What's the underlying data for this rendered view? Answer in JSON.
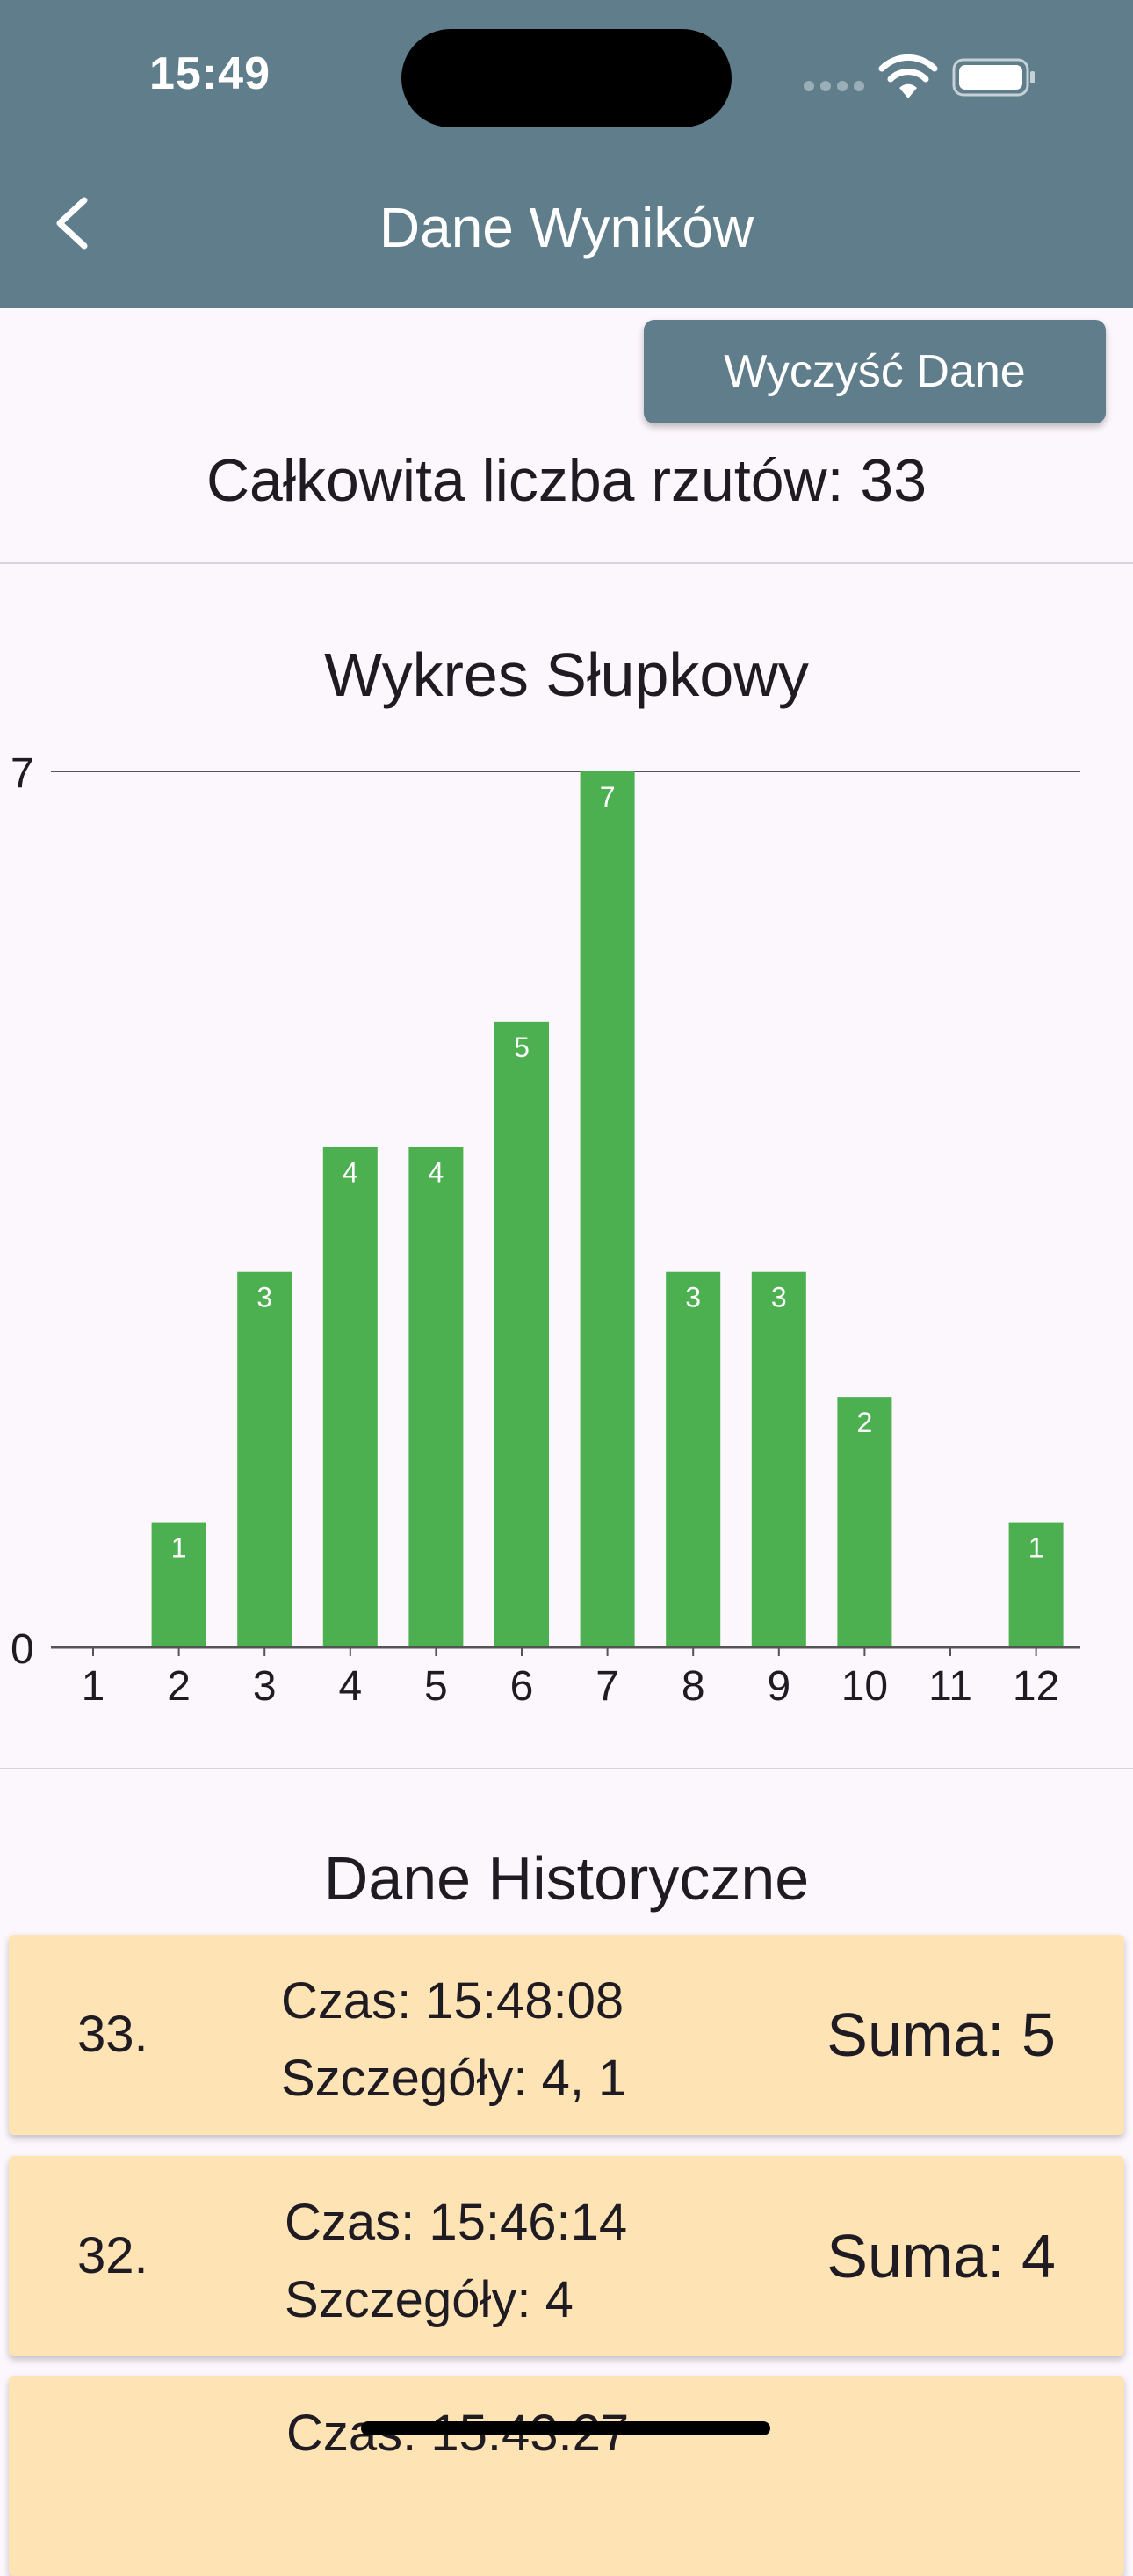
{
  "status_bar": {
    "time": "15:49"
  },
  "app_bar": {
    "title": "Dane Wyników",
    "back_icon": "chevron-left-icon",
    "background_color": "#607d8b"
  },
  "actions": {
    "clear_label": "Wyczyść Dane"
  },
  "summary": {
    "total_label": "Całkowita liczba rzutów: 33"
  },
  "bar_section": {
    "title": "Wykres Słupkowy"
  },
  "chart_data": {
    "type": "bar",
    "categories": [
      "1",
      "2",
      "3",
      "4",
      "5",
      "6",
      "7",
      "8",
      "9",
      "10",
      "11",
      "12"
    ],
    "values": [
      0,
      1,
      3,
      4,
      4,
      5,
      7,
      3,
      3,
      2,
      0,
      1
    ],
    "title": "Wykres Słupkowy",
    "xlabel": "",
    "ylabel": "",
    "ylim": [
      0,
      7
    ],
    "y_ticks": [
      "0",
      "7"
    ],
    "grid": false,
    "bar_color": "#4caf50",
    "data_labels": true
  },
  "history_section": {
    "title": "Dane Historyczne"
  },
  "history": [
    {
      "index": "33.",
      "time": "Czas: 15:48:08",
      "details": "Szczegóły: 4, 1",
      "sum": "Suma: 5"
    },
    {
      "index": "32.",
      "time": "Czas: 15:46:14",
      "details": "Szczegóły: 4",
      "sum": "Suma: 4"
    },
    {
      "index": "",
      "time": "Czas: 15:43:27",
      "details": "",
      "sum": ""
    }
  ],
  "colors": {
    "card_background": "#fee3b5",
    "page_background": "#fcf6fd"
  }
}
